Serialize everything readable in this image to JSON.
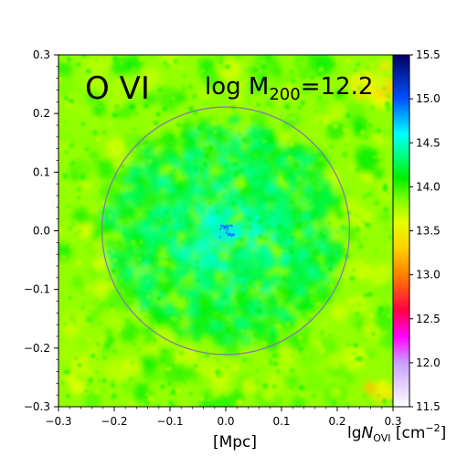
{
  "chart_data": {
    "type": "heatmap",
    "title": "",
    "species_label": "O VI",
    "mass_label_prefix": "log M",
    "mass_label_subscript": "200",
    "mass_label_value": "=12.2",
    "xlabel": "[Mpc]",
    "ylabel": "",
    "xlim": [
      -0.3,
      0.3
    ],
    "ylim": [
      -0.3,
      0.3
    ],
    "x_ticks": [
      -0.3,
      -0.2,
      -0.1,
      0.0,
      0.1,
      0.2,
      0.3
    ],
    "x_tick_labels": [
      "−0.3",
      "−0.2",
      "−0.1",
      "0.0",
      "0.1",
      "0.2",
      "0.3"
    ],
    "y_ticks": [
      0.3,
      0.2,
      0.1,
      0.0,
      -0.1,
      -0.2,
      -0.3
    ],
    "y_tick_labels": [
      "0.3",
      "0.2",
      "0.1",
      "0.0",
      "−0.1",
      "−0.2",
      "−0.3"
    ],
    "colorbar": {
      "label_prefix": "lg",
      "label_var": "N",
      "label_sub": "OVI",
      "label_unit": " [cm",
      "label_exp": "−2",
      "label_close": "]",
      "range": [
        11.5,
        15.5
      ],
      "ticks": [
        15.5,
        15.0,
        14.5,
        14.0,
        13.5,
        13.0,
        12.5,
        12.0,
        11.5
      ],
      "tick_labels": [
        "15.5",
        "15.0",
        "14.5",
        "14.0",
        "13.5",
        "13.0",
        "12.5",
        "12.0",
        "11.5"
      ],
      "colormap_stops": [
        {
          "value": 11.5,
          "color": "#ffffff"
        },
        {
          "value": 12.0,
          "color": "#c8a0ff"
        },
        {
          "value": 12.3,
          "color": "#ff00ff"
        },
        {
          "value": 12.6,
          "color": "#ff0040"
        },
        {
          "value": 13.0,
          "color": "#ff8000"
        },
        {
          "value": 13.3,
          "color": "#ffd000"
        },
        {
          "value": 13.6,
          "color": "#e6ff00"
        },
        {
          "value": 13.85,
          "color": "#80ff00"
        },
        {
          "value": 14.1,
          "color": "#00f000"
        },
        {
          "value": 14.35,
          "color": "#00ff80"
        },
        {
          "value": 14.6,
          "color": "#00ffff"
        },
        {
          "value": 15.0,
          "color": "#0050ff"
        },
        {
          "value": 15.5,
          "color": "#000060"
        }
      ]
    },
    "r200_circle": {
      "center": [
        0.0,
        0.0
      ],
      "radius": 0.222,
      "color": "#8080a0"
    },
    "map_description_values": {
      "background_level": 13.8,
      "inner_level": 14.5,
      "center_peak_level": 15.0,
      "upper_right_corner_level": 13.3,
      "lower_right_corner_level": 13.3
    }
  }
}
